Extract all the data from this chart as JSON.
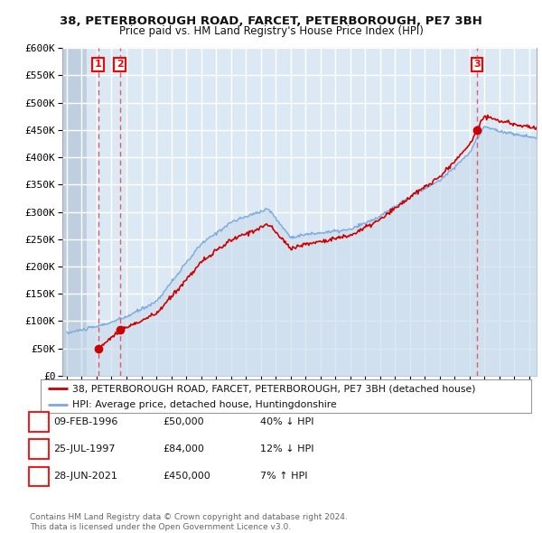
{
  "title": "38, PETERBOROUGH ROAD, FARCET, PETERBOROUGH, PE7 3BH",
  "subtitle": "Price paid vs. HM Land Registry's House Price Index (HPI)",
  "sale_year_floats": [
    1996.107,
    1997.556,
    2021.493
  ],
  "sale_prices": [
    50000,
    84000,
    450000
  ],
  "sale_labels": [
    "1",
    "2",
    "3"
  ],
  "legend_property": "38, PETERBOROUGH ROAD, FARCET, PETERBOROUGH, PE7 3BH (detached house)",
  "legend_hpi": "HPI: Average price, detached house, Huntingdonshire",
  "copyright": "Contains HM Land Registry data © Crown copyright and database right 2024.\nThis data is licensed under the Open Government Licence v3.0.",
  "table_rows": [
    [
      "1",
      "09-FEB-1996",
      "£50,000",
      "40% ↓ HPI"
    ],
    [
      "2",
      "25-JUL-1997",
      "£84,000",
      "12% ↓ HPI"
    ],
    [
      "3",
      "28-JUN-2021",
      "£450,000",
      "7% ↑ HPI"
    ]
  ],
  "hatch_end_year": 1995.3,
  "ylim": [
    0,
    600000
  ],
  "xlim_start": 1993.7,
  "xlim_end": 2025.5,
  "background_color": "#dce9f5",
  "hatch_fill_color": "#bfcfdf",
  "grid_color": "#ffffff",
  "red_line_color": "#cc0000",
  "blue_line_color": "#7aaadd",
  "blue_fill_color": "#c8daea"
}
